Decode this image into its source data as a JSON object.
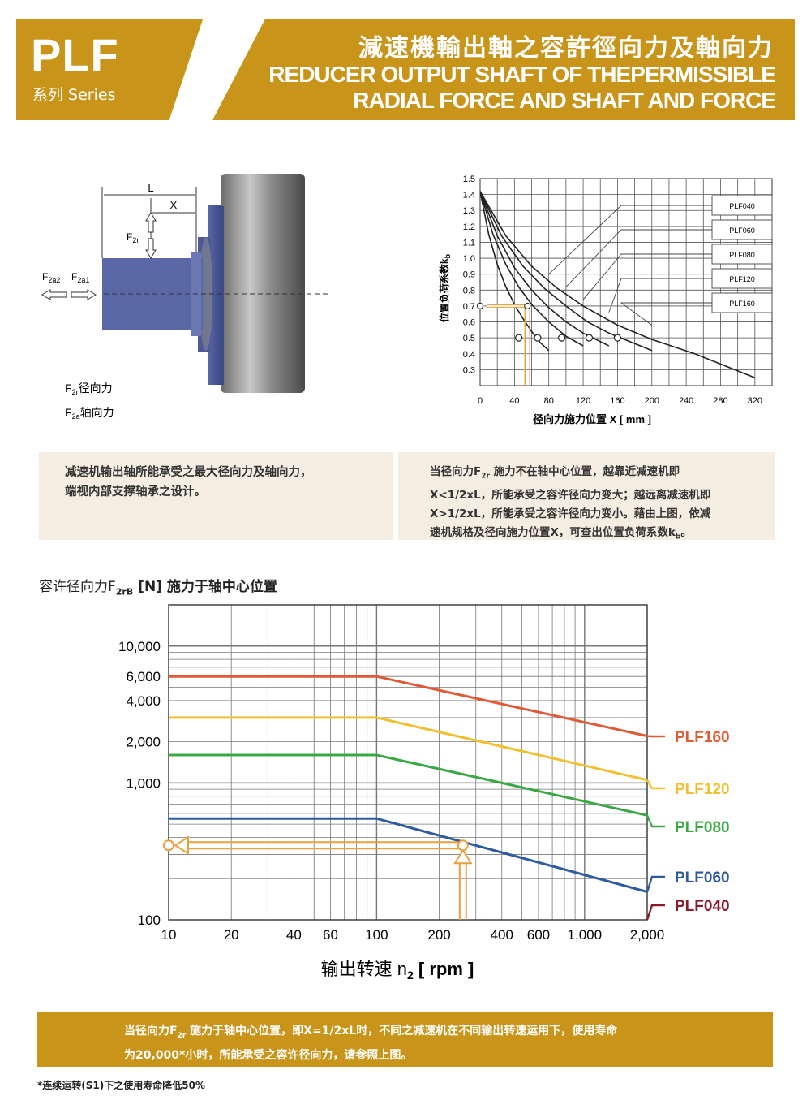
{
  "header": {
    "model": "PLF",
    "series": "系列 Series",
    "title_cn": "減速機輸出軸之容許徑向力及軸向力",
    "title_en_line1": "REDUCER OUTPUT SHAFT OF THEPERMISSIBLE",
    "title_en_line2": "RADIAL FORCE AND SHAFT AND FORCE",
    "accent_color": "#c89419"
  },
  "shaft_diagram": {
    "label_L": "L",
    "label_X": "X",
    "label_F2r_main": "F",
    "label_F2r_sub": "2r",
    "label_F2a2_main": "F",
    "label_F2a2_sub": "2a2",
    "label_F2a1_main": "F",
    "label_F2a1_sub": "2a1",
    "legend_radial_main": "F",
    "legend_radial_sub": "2r",
    "legend_radial_text": "径向力",
    "legend_axial_main": "F",
    "legend_axial_sub": "2a",
    "legend_axial_text": "轴向力"
  },
  "kb_chart": {
    "type": "line",
    "ylabel_main": "位置负荷系数k",
    "ylabel_sub": "b",
    "xlabel": "径向力施力位置 X [ mm ]",
    "xlim": [
      0,
      340
    ],
    "ylim": [
      0.2,
      1.5
    ],
    "x_ticks": [
      "0",
      "40",
      "80",
      "120",
      "160",
      "200",
      "240",
      "280",
      "320"
    ],
    "y_ticks": [
      "0.3",
      "0.4",
      "0.5",
      "0.6",
      "0.7",
      "0.8",
      "0.9",
      "1.0",
      "1.1",
      "1.2",
      "1.3",
      "1.4",
      "1.5"
    ],
    "series": [
      {
        "name": "PLF040",
        "x": [
          0,
          10,
          20,
          30,
          40,
          50,
          60,
          70,
          80
        ],
        "y": [
          1.42,
          1.15,
          0.96,
          0.82,
          0.71,
          0.62,
          0.54,
          0.47,
          0.42
        ]
      },
      {
        "name": "PLF060",
        "x": [
          0,
          15,
          30,
          45,
          60,
          80,
          100,
          120
        ],
        "y": [
          1.42,
          1.15,
          0.96,
          0.82,
          0.71,
          0.6,
          0.51,
          0.45
        ]
      },
      {
        "name": "PLF080",
        "x": [
          0,
          20,
          40,
          60,
          80,
          100,
          120,
          150
        ],
        "y": [
          1.42,
          1.14,
          0.94,
          0.8,
          0.69,
          0.6,
          0.53,
          0.45
        ]
      },
      {
        "name": "PLF120",
        "x": [
          0,
          25,
          50,
          75,
          100,
          125,
          150,
          200
        ],
        "y": [
          1.42,
          1.14,
          0.95,
          0.81,
          0.7,
          0.6,
          0.53,
          0.42
        ]
      },
      {
        "name": "PLF160",
        "x": [
          0,
          30,
          60,
          90,
          120,
          160,
          200,
          250,
          320
        ],
        "y": [
          1.42,
          1.14,
          0.95,
          0.81,
          0.7,
          0.58,
          0.49,
          0.4,
          0.25
        ]
      }
    ],
    "legend_labels": [
      "PLF040",
      "PLF060",
      "PLF080",
      "PLF120",
      "PLF160"
    ],
    "example_points": {
      "x": [
        45,
        67,
        95,
        127,
        160
      ],
      "y": [
        0.5,
        0.5,
        0.5,
        0.5,
        0.5
      ]
    },
    "example_lookup": {
      "x": 55,
      "y": 0.7
    }
  },
  "info_left": {
    "line1": "减速机输出轴所能承受之最大径向力及轴向力，",
    "line2": "端视内部支撑轴承之设计。"
  },
  "info_right": {
    "line1_a": "当径向力F",
    "line1_sub": "2r",
    "line1_b": " 施力不在轴中心位置，越靠近减速机即",
    "line2": "X<1/2xL，所能承受之容许径向力变大；越远离减速机即",
    "line3": "X>1/2xL，所能承受之容许径向力变小。藉由上图，依减",
    "line4_a": "速机规格及径向施力位置X，可查出位置负荷系数k",
    "line4_sub": "b",
    "line4_b": "。"
  },
  "force_chart": {
    "type": "line",
    "title_a": "容许径向力F",
    "title_sub": "2rB",
    "title_b": " [N]    施力于轴中心位置",
    "xlabel_main": "输出转速 n",
    "xlabel_sub": "2",
    "xlabel_unit": " [ rpm ]",
    "x_scale": "log",
    "y_scale": "log",
    "xlim": [
      10,
      2000
    ],
    "ylim": [
      100,
      20000
    ],
    "x_ticks": [
      {
        "v": 10,
        "label": "10"
      },
      {
        "v": 20,
        "label": "20"
      },
      {
        "v": 40,
        "label": "40"
      },
      {
        "v": 60,
        "label": "60"
      },
      {
        "v": 100,
        "label": "100"
      },
      {
        "v": 200,
        "label": "200"
      },
      {
        "v": 400,
        "label": "400"
      },
      {
        "v": 600,
        "label": "600"
      },
      {
        "v": 1000,
        "label": "1,000"
      },
      {
        "v": 2000,
        "label": "2,000"
      }
    ],
    "y_ticks": [
      {
        "v": 100,
        "label": "100"
      },
      {
        "v": 1000,
        "label": "1,000"
      },
      {
        "v": 2000,
        "label": "2,000"
      },
      {
        "v": 4000,
        "label": "4,000"
      },
      {
        "v": 6000,
        "label": "6,000"
      },
      {
        "v": 10000,
        "label": "10,000"
      }
    ],
    "series": [
      {
        "name": "PLF160",
        "color": "#e05a35",
        "x": [
          10,
          100,
          2000
        ],
        "y": [
          6000,
          6000,
          2200
        ]
      },
      {
        "name": "PLF120",
        "color": "#f0c030",
        "x": [
          10,
          100,
          2000
        ],
        "y": [
          3000,
          3000,
          1050
        ]
      },
      {
        "name": "PLF080",
        "color": "#3aa845",
        "x": [
          10,
          100,
          2000
        ],
        "y": [
          1600,
          1600,
          580
        ]
      },
      {
        "name": "PLF060",
        "color": "#2e5a9e",
        "x": [
          10,
          100,
          2000
        ],
        "y": [
          550,
          550,
          160
        ]
      },
      {
        "name": "PLF040",
        "color": "#8b1a2a",
        "x": [],
        "y": []
      }
    ],
    "example": {
      "x": 260,
      "y": 350
    }
  },
  "footer": {
    "line1_a": "当径向力F",
    "line1_sub": "2r",
    "line1_b": " 施力于轴中心位置，即X=1/2xL时，不同之减速机在不同输出转速运用下，使用寿命",
    "line2": "为20,000*小时，所能承受之容许径向力，请参照上图。",
    "footnote": "*连续运转(S1)下之使用寿命降低50%"
  }
}
